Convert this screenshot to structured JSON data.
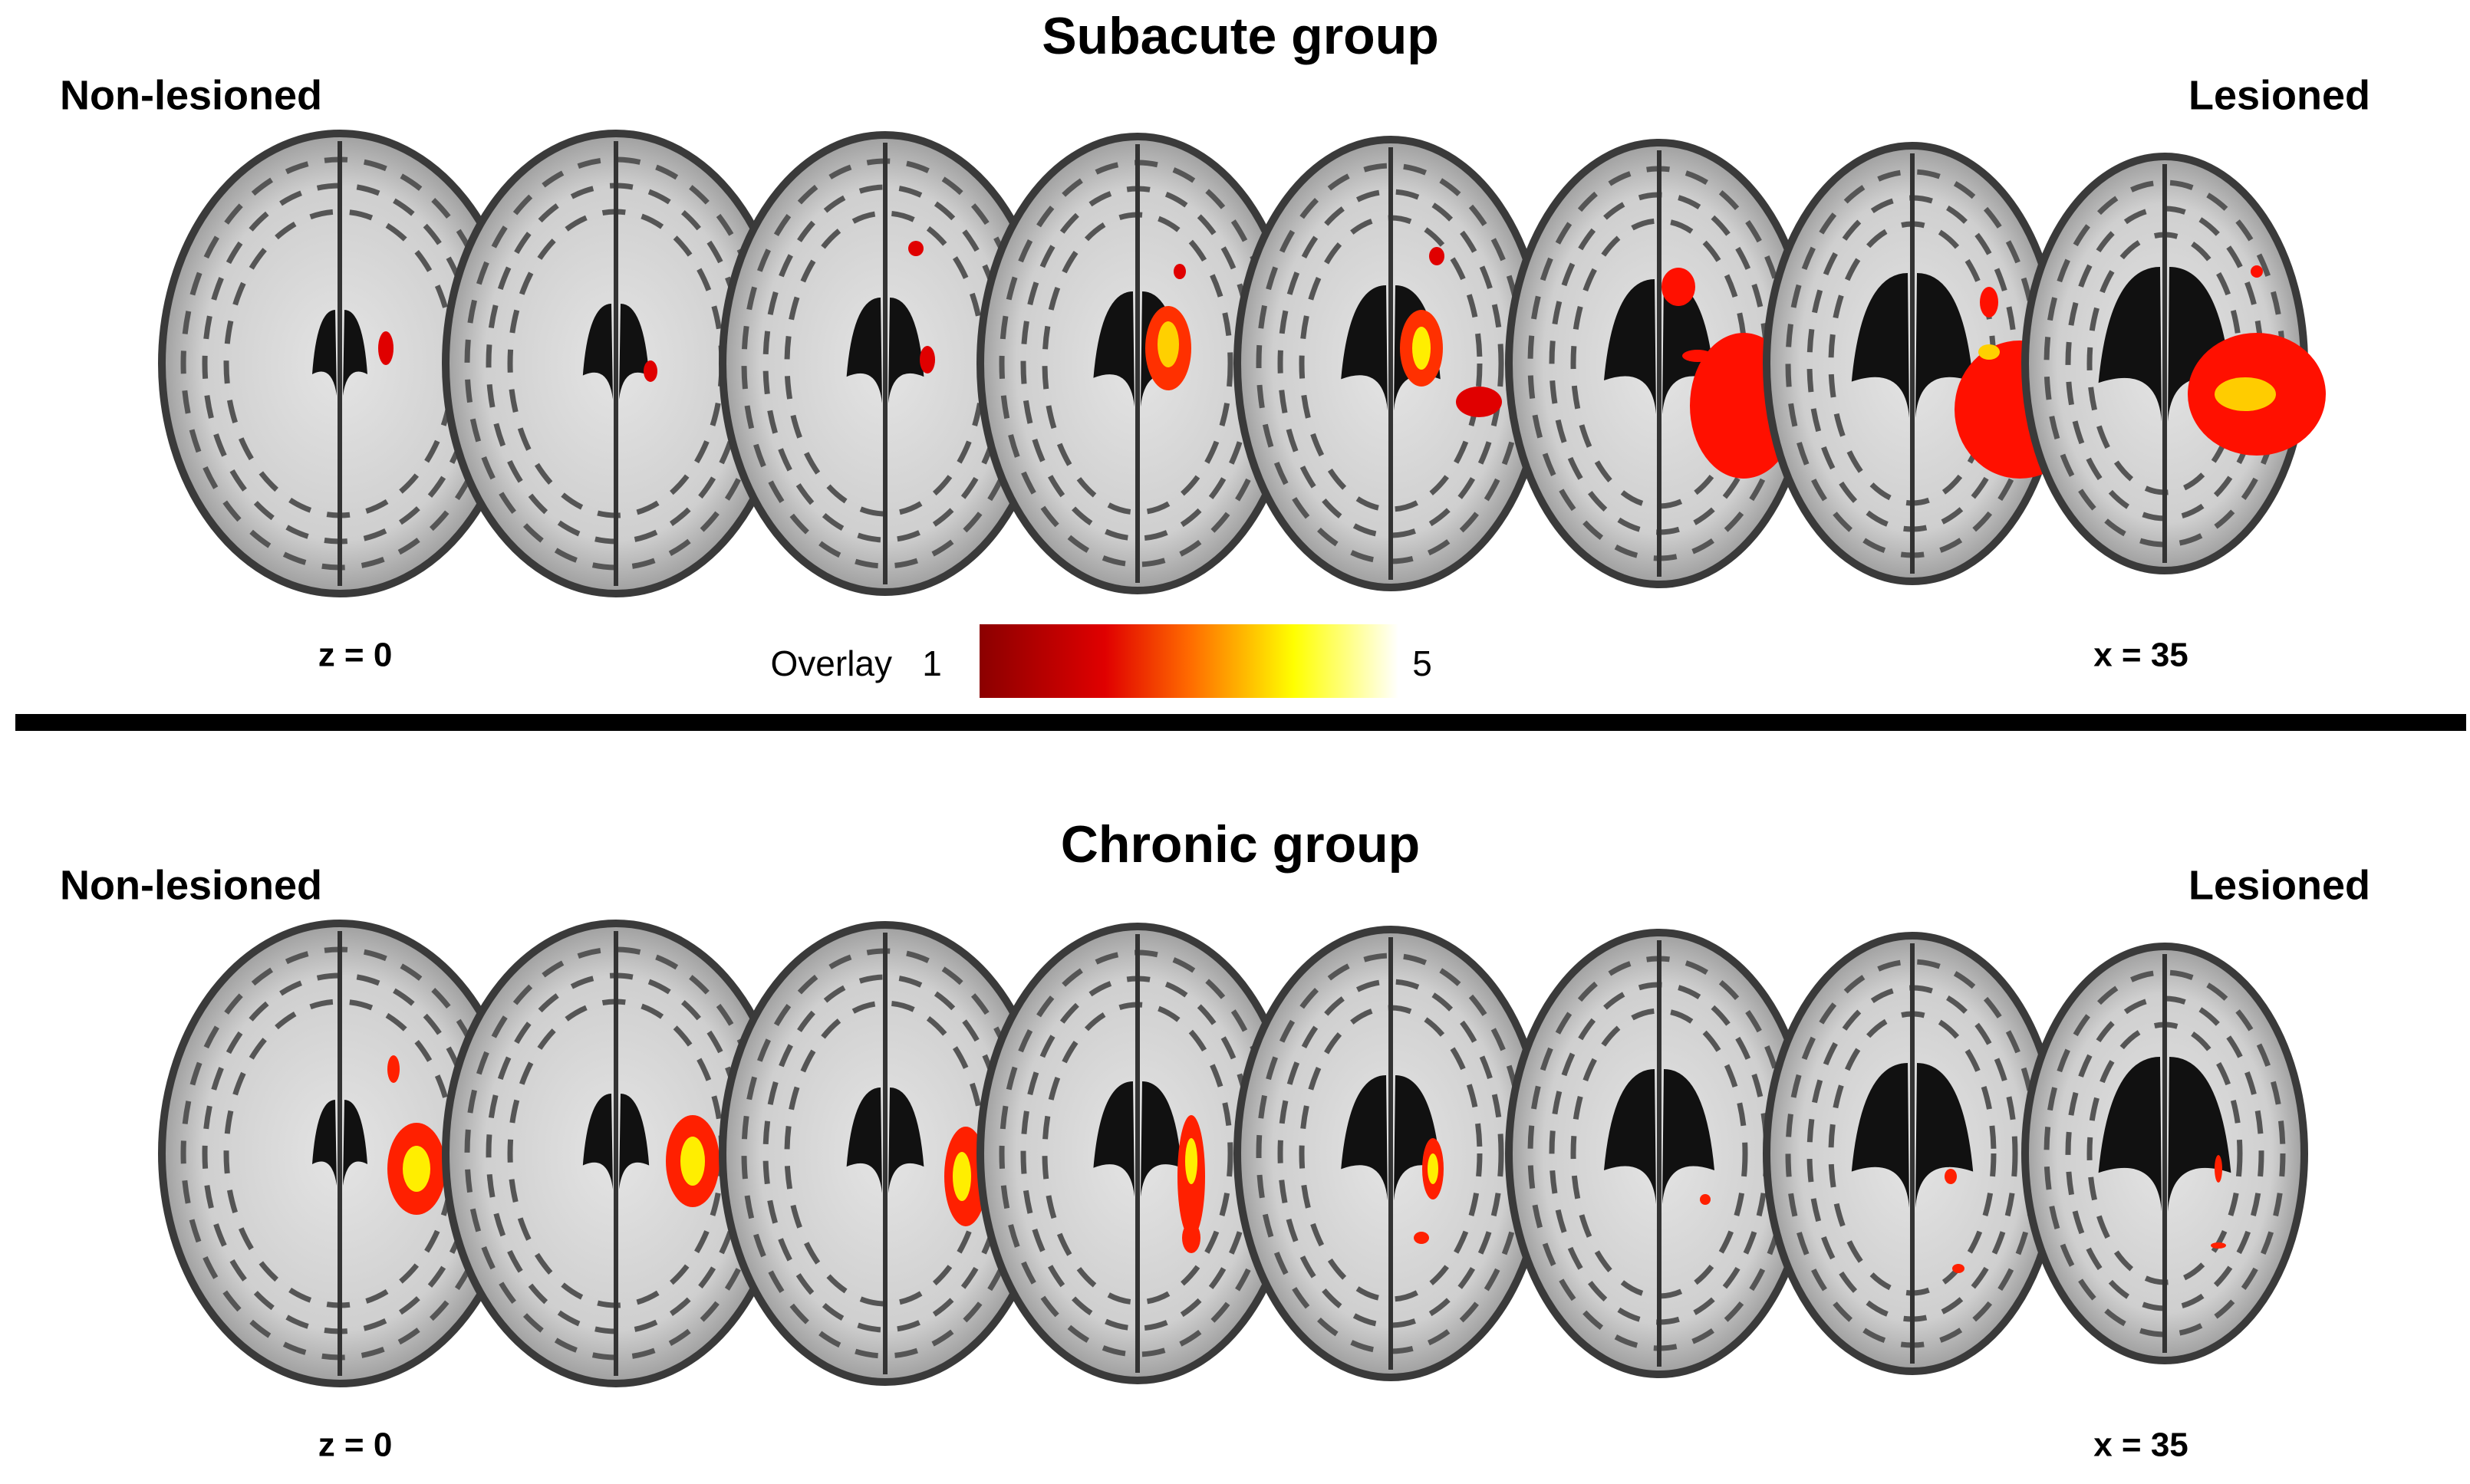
{
  "panels": [
    {
      "title": "Subacute group",
      "left_label": "Non-lesioned",
      "right_label": "Lesioned",
      "left_coord": "z = 0",
      "right_coord": "x = 35"
    },
    {
      "title": "Chronic group",
      "left_label": "Non-lesioned",
      "right_label": "Lesioned",
      "left_coord": "z = 0",
      "right_coord": "x = 35"
    }
  ],
  "colorbar": {
    "label": "Overlay",
    "min": "1",
    "max": "5"
  }
}
